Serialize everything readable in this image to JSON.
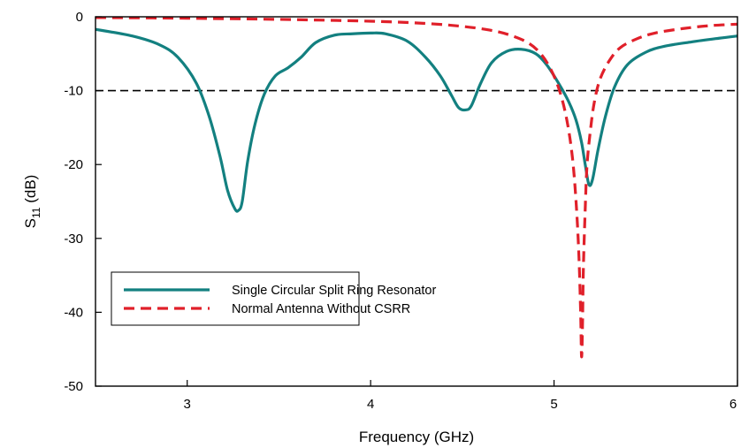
{
  "chart_data": {
    "type": "line",
    "xlabel": "Frequency (GHz)",
    "ylabel": {
      "base": "S",
      "sub": "11",
      "suffix": " (dB)"
    },
    "xlim": [
      2.5,
      6.0
    ],
    "ylim": [
      -50,
      0
    ],
    "xticks": [
      3,
      4,
      5,
      6
    ],
    "yticks": [
      0,
      -10,
      -20,
      -30,
      -40,
      -50
    ],
    "grid": false,
    "legend_position": "lower-left",
    "reference_line": {
      "y": -10,
      "style": "dashed",
      "color": "#000000"
    },
    "series": [
      {
        "name": "Single Circular Split Ring Resonator",
        "color": "#138080",
        "style": "solid",
        "x": [
          2.5,
          2.7,
          2.85,
          2.95,
          3.05,
          3.12,
          3.18,
          3.22,
          3.26,
          3.28,
          3.3,
          3.33,
          3.37,
          3.42,
          3.48,
          3.55,
          3.62,
          3.7,
          3.8,
          3.9,
          4.0,
          4.08,
          4.2,
          4.3,
          4.38,
          4.44,
          4.48,
          4.52,
          4.55,
          4.6,
          4.66,
          4.74,
          4.82,
          4.9,
          4.96,
          5.02,
          5.08,
          5.12,
          5.15,
          5.17,
          5.19,
          5.21,
          5.24,
          5.28,
          5.33,
          5.4,
          5.5,
          5.6,
          5.75,
          5.9,
          6.0
        ],
        "y": [
          -1.7,
          -2.6,
          -3.8,
          -5.5,
          -9.0,
          -13.5,
          -19.0,
          -23.5,
          -26.0,
          -26.2,
          -25.0,
          -19.5,
          -14.5,
          -10.5,
          -8.0,
          -6.9,
          -5.5,
          -3.5,
          -2.5,
          -2.3,
          -2.2,
          -2.3,
          -3.3,
          -5.5,
          -8.0,
          -10.6,
          -12.3,
          -12.6,
          -12.0,
          -9.0,
          -6.2,
          -4.7,
          -4.4,
          -5.0,
          -6.5,
          -8.8,
          -11.5,
          -14.0,
          -17.0,
          -20.0,
          -22.7,
          -22.0,
          -18.0,
          -13.5,
          -9.5,
          -6.5,
          -4.8,
          -4.0,
          -3.4,
          -2.9,
          -2.6
        ]
      },
      {
        "name": "Normal Antenna Without CSRR",
        "color": "#e0202a",
        "style": "dashed",
        "x": [
          2.5,
          3.0,
          3.5,
          4.0,
          4.3,
          4.5,
          4.65,
          4.75,
          4.85,
          4.92,
          4.98,
          5.03,
          5.07,
          5.1,
          5.12,
          5.135,
          5.145,
          5.15,
          5.155,
          5.16,
          5.17,
          5.18,
          5.2,
          5.22,
          5.25,
          5.3,
          5.36,
          5.45,
          5.55,
          5.7,
          5.85,
          6.0
        ],
        "y": [
          -0.1,
          -0.2,
          -0.35,
          -0.6,
          -0.9,
          -1.3,
          -1.8,
          -2.4,
          -3.4,
          -4.8,
          -7.0,
          -10.0,
          -14.0,
          -19.0,
          -25.0,
          -32.0,
          -40.0,
          -46.0,
          -42.0,
          -34.0,
          -26.0,
          -20.0,
          -15.0,
          -11.5,
          -8.5,
          -6.0,
          -4.2,
          -3.0,
          -2.2,
          -1.6,
          -1.2,
          -1.0
        ]
      }
    ]
  }
}
